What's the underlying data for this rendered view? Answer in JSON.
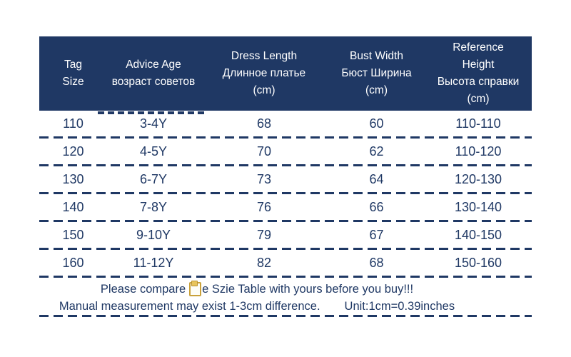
{
  "colors": {
    "navy": "#1f3864",
    "background": "#ffffff",
    "header_text": "#ffffff",
    "clipboard_gold": "#c9a13b"
  },
  "size_table": {
    "columns": [
      {
        "id": "tag-size",
        "lines": [
          "Tag",
          "Size"
        ]
      },
      {
        "id": "advice-age",
        "lines": [
          "Advice Age",
          "возраст советов"
        ]
      },
      {
        "id": "dress-length",
        "lines": [
          "Dress Length",
          "Длинное платье",
          "(cm)"
        ]
      },
      {
        "id": "bust-width",
        "lines": [
          "Bust Width",
          "Бюст Ширина",
          "(cm)"
        ]
      },
      {
        "id": "reference-height",
        "lines": [
          "Reference",
          "Height",
          "Высота справки",
          "(cm)"
        ]
      }
    ],
    "rows": [
      {
        "tag": "110",
        "age": "3-4Y",
        "dress": "68",
        "bust": "60",
        "height": "110-110"
      },
      {
        "tag": "120",
        "age": "4-5Y",
        "dress": "70",
        "bust": "62",
        "height": "110-120"
      },
      {
        "tag": "130",
        "age": "6-7Y",
        "dress": "73",
        "bust": "64",
        "height": "120-130"
      },
      {
        "tag": "140",
        "age": "7-8Y",
        "dress": "76",
        "bust": "66",
        "height": "130-140"
      },
      {
        "tag": "150",
        "age": "9-10Y",
        "dress": "79",
        "bust": "67",
        "height": "140-150"
      },
      {
        "tag": "160",
        "age": "11-12Y",
        "dress": "82",
        "bust": "68",
        "height": "150-160"
      }
    ]
  },
  "footer": {
    "line1_before_icon": "Please compare",
    "icon": "clipboard-icon",
    "line1_after_icon": "e Szie Table with yours before you buy!!!",
    "line2_note": "Manual measurement may exist 1-3cm difference.",
    "line2_unit": "Unit:1cm=0.39inches"
  }
}
